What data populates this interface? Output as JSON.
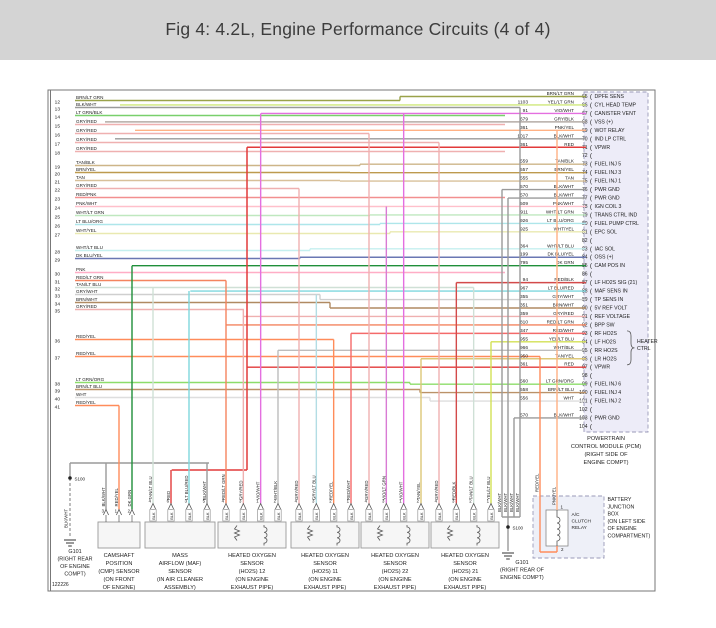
{
  "header": {
    "title": "Fig 4: 4.2L, Engine Performance Circuits (4 of 4)"
  },
  "diagram_id": "122226",
  "connector_tag": "BLK",
  "colors": {
    "BRN/LT GRN": "#9aa24a",
    "BLK/WHT": "#9a9a9a",
    "LT GRN/BLK": "#79d06c",
    "GRY/RED": "#efb0b0",
    "TAN/BLK": "#cdb588",
    "BRN/YEL": "#bd9a4e",
    "TAN": "#d8c09a",
    "RED/PNK": "#f28f8f",
    "PNK/WHT": "#ffc0cb",
    "WHT/LT GRN": "#bfe8bf",
    "LT BLU/ORG": "#aee6ea",
    "WHT/YEL": "#e9e9b0",
    "WHT/LT BLU": "#c5efef",
    "DK BLU/YEL": "#6a77b3",
    "PNK": "#ffadc6",
    "RED/LT GRN": "#f4845f",
    "TAN/LT BLU": "#cfe0d6",
    "GRY/WHT": "#cfcfcf",
    "BRN/WHT": "#b08a62",
    "RED/YEL": "#ff8c5a",
    "LT GRN/ORG": "#8ddd6a",
    "BRN/LT BLU": "#bb9268",
    "WHT": "#dedede",
    "YEL/LT GRN": "#cfe87a",
    "VIO/WHT": "#e46fe0",
    "GRY/BLK": "#b5aca6",
    "PNK/YEL": "#ffb184",
    "RED": "#e23a3a",
    "DK GRN": "#1f8f3a",
    "RED/BLK": "#d34a4a",
    "LT BLU/RED": "#7fd7dd",
    "GRY/LT BLU": "#b3dde4",
    "VIO/LT GRN": "#d97bd4",
    "TAN/YEL": "#ddc878",
    "YEL/LT BLU": "#d3e155",
    "RED/WHT": "#f46a6a",
    "WHT/BLK": "#bdbdbd"
  },
  "left_pins": [
    {
      "pin": "12",
      "color": "BRN/LT GRN"
    },
    {
      "pin": "13",
      "color": "BLK/WHT"
    },
    {
      "pin": "14",
      "color": "LT GRN/BLK"
    },
    {
      "pin": "15",
      "color": "GRY/RED"
    },
    {
      "pin": "16",
      "color": "GRY/RED"
    },
    {
      "pin": "17",
      "color": "GRY/RED"
    },
    {
      "pin": "18",
      "color": "GRY/RED"
    },
    {
      "pin": "19",
      "color": "TAN/BLK"
    },
    {
      "pin": "20",
      "color": "BRN/YEL"
    },
    {
      "pin": "21",
      "color": "TAN"
    },
    {
      "pin": "22",
      "color": "GRY/RED"
    },
    {
      "pin": "23",
      "color": "RED/PNK"
    },
    {
      "pin": "24",
      "color": "PNK/WHT"
    },
    {
      "pin": "25",
      "color": "WHT/LT GRN"
    },
    {
      "pin": "26",
      "color": "LT BLU/ORG"
    },
    {
      "pin": "27",
      "color": "WHT/YEL"
    },
    {
      "pin": "28",
      "color": "WHT/LT BLU"
    },
    {
      "pin": "29",
      "color": "DK BLU/YEL"
    },
    {
      "pin": "30",
      "color": "PNK"
    },
    {
      "pin": "31",
      "color": "RED/LT GRN"
    },
    {
      "pin": "32",
      "color": "TAN/LT BLU"
    },
    {
      "pin": "33",
      "color": "GRY/WHT"
    },
    {
      "pin": "34",
      "color": "BRN/WHT"
    },
    {
      "pin": "35",
      "color": "GRY/RED"
    },
    {
      "pin": "36",
      "color": "RED/YEL"
    },
    {
      "pin": "37",
      "color": "RED/YEL"
    },
    {
      "pin": "38",
      "color": "LT GRN/ORG"
    },
    {
      "pin": "39",
      "color": "BRN/LT BLU"
    },
    {
      "pin": "40",
      "color": "WHT"
    },
    {
      "pin": "41",
      "color": "RED/YEL"
    }
  ],
  "pcm": {
    "caption_lines": [
      "POWERTRAIN",
      "CONTROL MODULE (PCM)",
      "(RIGHT SIDE OF",
      "ENGINE COMPT)"
    ],
    "heater_bracket": [
      "HEATER",
      "CTRL"
    ],
    "pins": [
      {
        "pin": "65",
        "circuit": "",
        "color": "BRN/LT GRN",
        "label": "DPFE SENS"
      },
      {
        "pin": "66",
        "circuit": "1103",
        "color": "YEL/LT GRN",
        "label": "CYL HEAD TEMP"
      },
      {
        "pin": "67",
        "circuit": "91",
        "color": "VIO/WHT",
        "label": "CANISTER VENT"
      },
      {
        "pin": "68",
        "circuit": "679",
        "color": "GRY/BLK",
        "label": "VSS (+)"
      },
      {
        "pin": "69",
        "circuit": "361",
        "color": "PNK/YEL",
        "label": "WOT RELAY"
      },
      {
        "pin": "70",
        "circuit": "1017",
        "color": "BLK/WHT",
        "label": "IND LP CTRL"
      },
      {
        "pin": "71",
        "circuit": "361",
        "color": "RED",
        "label": "VPWR"
      },
      {
        "pin": "72",
        "blank": true
      },
      {
        "pin": "73",
        "circuit": "559",
        "color": "TAN/BLK",
        "label": "FUEL INJ 5"
      },
      {
        "pin": "74",
        "circuit": "557",
        "color": "BRN/YEL",
        "label": "FUEL INJ 3"
      },
      {
        "pin": "75",
        "circuit": "555",
        "color": "TAN",
        "label": "FUEL INJ 1"
      },
      {
        "pin": "76",
        "circuit": "570",
        "color": "BLK/WHT",
        "label": "PWR GND"
      },
      {
        "pin": "77",
        "circuit": "570",
        "color": "BLK/WHT",
        "label": "PWR GND"
      },
      {
        "pin": "78",
        "circuit": "509",
        "color": "PNK/WHT",
        "label": "IGN COIL 3"
      },
      {
        "pin": "79",
        "circuit": "911",
        "color": "WHT/LT GRN",
        "label": "TRANS CTRL IND"
      },
      {
        "pin": "80",
        "circuit": "926",
        "color": "LT BLU/ORG",
        "label": "FUEL PUMP CTRL"
      },
      {
        "pin": "81",
        "circuit": "925",
        "color": "WHT/YEL",
        "label": "EPC SOL"
      },
      {
        "pin": "82",
        "blank": true
      },
      {
        "pin": "83",
        "circuit": "364",
        "color": "WHT/LT BLU",
        "label": "IAC SOL"
      },
      {
        "pin": "84",
        "circuit": "199",
        "color": "DK BLU/YEL",
        "label": "OSS (+)"
      },
      {
        "pin": "85",
        "circuit": "795",
        "color": "DK GRN",
        "label": "CAM POS IN"
      },
      {
        "pin": "86",
        "blank": true
      },
      {
        "pin": "87",
        "circuit": "94",
        "color": "RED/BLK",
        "label": "LF HO2S SIG (21)"
      },
      {
        "pin": "88",
        "circuit": "967",
        "color": "LT BLU/RED",
        "label": "MAF SENS IN"
      },
      {
        "pin": "89",
        "circuit": "355",
        "color": "GRY/WHT",
        "label": "TP SENS IN"
      },
      {
        "pin": "90",
        "circuit": "351",
        "color": "BRN/WHT",
        "label": "5V REF VOLT"
      },
      {
        "pin": "91",
        "circuit": "359",
        "color": "GRY/RED",
        "label": "REF VOLTAGE"
      },
      {
        "pin": "92",
        "circuit": "810",
        "color": "RED/LT GRN",
        "label": "BPP SW"
      },
      {
        "pin": "93",
        "circuit": "347",
        "color": "RED/WHT",
        "label": "RF HO2S",
        "heater": true
      },
      {
        "pin": "94",
        "circuit": "955",
        "color": "YEL/LT BLU",
        "label": "LF HO2S",
        "heater": true
      },
      {
        "pin": "95",
        "circuit": "966",
        "color": "WHT/BLK",
        "label": "RR HO2S",
        "heater": true
      },
      {
        "pin": "96",
        "circuit": "950",
        "color": "TAN/YEL",
        "label": "LR HO2S",
        "heater": true
      },
      {
        "pin": "97",
        "circuit": "361",
        "color": "RED",
        "label": "VPWR"
      },
      {
        "pin": "98",
        "blank": true
      },
      {
        "pin": "99",
        "circuit": "560",
        "color": "LT GRN/ORG",
        "label": "FUEL INJ 6"
      },
      {
        "pin": "100",
        "circuit": "558",
        "color": "BRN/LT BLU",
        "label": "FUEL INJ 4"
      },
      {
        "pin": "101",
        "circuit": "556",
        "color": "WHT",
        "label": "FUEL INJ 2"
      },
      {
        "pin": "102",
        "blank": true
      },
      {
        "pin": "103",
        "circuit": "570",
        "color": "BLK/WHT",
        "label": "PWR GND"
      },
      {
        "pin": "104",
        "blank": true
      }
    ]
  },
  "components": [
    {
      "id": "cmp-sensor",
      "style": "plain",
      "tag": null,
      "caption_lines": [
        "CAMSHAFT",
        "POSITION",
        "(CMP) SENSOR",
        "(ON FRONT",
        "OF ENGINE)"
      ],
      "wires": [
        {
          "pin": "3",
          "color": "BLK/WHT"
        },
        {
          "pin": "1",
          "color": "RED/YEL"
        },
        {
          "pin": "2",
          "color": "DK GRN"
        }
      ]
    },
    {
      "id": "maf-sensor",
      "style": "plain",
      "tag": "BLK",
      "caption_lines": [
        "MASS",
        "AIRFLOW (MAF)",
        "SENSOR",
        "(IN AIR CLEANER",
        "ASSEMBLY)"
      ],
      "wires": [
        {
          "pin": "4",
          "color": "TAN/LT BLU"
        },
        {
          "pin": "6",
          "color": "RED"
        },
        {
          "pin": "3",
          "color": "LT BLU/RED"
        },
        {
          "pin": "5",
          "color": "BLK/WHT"
        }
      ]
    },
    {
      "id": "ho2s-12",
      "style": "o2",
      "tag": "BLK",
      "caption_lines": [
        "HEATED OXYGEN",
        "SENSOR",
        "(HO2S) 12",
        "(ON ENGINE",
        "EXHAUST PIPE)"
      ],
      "wires": [
        {
          "pin": "4",
          "color": "RED/LT GRN"
        },
        {
          "pin": "3",
          "color": "GRY/RED"
        },
        {
          "pin": "1",
          "color": "VIO/WHT"
        },
        {
          "pin": "2",
          "color": "WHT/BLK"
        }
      ]
    },
    {
      "id": "ho2s-11",
      "style": "o2",
      "tag": "BLK",
      "caption_lines": [
        "HEATED OXYGEN",
        "SENSOR",
        "(HO2S) 11",
        "(ON ENGINE",
        "EXHAUST PIPE)"
      ],
      "wires": [
        {
          "pin": "4",
          "color": "GRY/RED"
        },
        {
          "pin": "3",
          "color": "GRY/LT BLU"
        },
        {
          "pin": "2",
          "color": "RED/YEL"
        },
        {
          "pin": "1",
          "color": "RED/WHT"
        }
      ]
    },
    {
      "id": "ho2s-22",
      "style": "o2",
      "tag": "BLK",
      "caption_lines": [
        "HEATED OXYGEN",
        "SENSOR",
        "(HO2S) 22",
        "(ON ENGINE",
        "EXHAUST PIPE)"
      ],
      "wires": [
        {
          "pin": "4",
          "color": "GRY/RED"
        },
        {
          "pin": "3",
          "color": "VIO/LT GRN"
        },
        {
          "pin": "1",
          "color": "VIO/WHT"
        },
        {
          "pin": "2",
          "color": "TAN/YEL"
        }
      ]
    },
    {
      "id": "ho2s-21",
      "style": "o2",
      "tag": "BLK",
      "caption_lines": [
        "HEATED OXYGEN",
        "SENSOR",
        "(HO2S) 21",
        "(ON ENGINE",
        "EXHAUST PIPE)"
      ],
      "wires": [
        {
          "pin": "4",
          "color": "GRY/RED"
        },
        {
          "pin": "3",
          "color": "RED/BLK"
        },
        {
          "pin": "2",
          "color": "TAN/LT BLU"
        },
        {
          "pin": "1",
          "color": "YEL/LT BLU"
        }
      ]
    }
  ],
  "grounds": {
    "left": {
      "splice": "S100",
      "wire_label": "BLK/WHT",
      "caption_lines": [
        "G101",
        "(RIGHT REAR",
        "OF ENGINE",
        "COMPT)"
      ]
    },
    "right": {
      "splice": "S100",
      "wire_label": "BLK/WHT",
      "bundle_labels": [
        "BLK/WHT",
        "BLK/WHT",
        "BLK/WHT",
        "BLK/WHT"
      ],
      "caption_lines": [
        "G101",
        "(RIGHT REAR OF",
        "ENGINE COMPT)"
      ]
    }
  },
  "battery_box": {
    "caption_lines": [
      "BATTERY",
      "JUNCTION",
      "BOX",
      "(ON LEFT SIDE",
      "OF ENGINE",
      "COMPARTMENT)"
    ],
    "relay_lines": [
      "A/C",
      "CLUTCH",
      "RELAY"
    ],
    "pins": [
      "1",
      "2"
    ],
    "wires": [
      "RED/YEL",
      "PNK/YEL"
    ]
  }
}
